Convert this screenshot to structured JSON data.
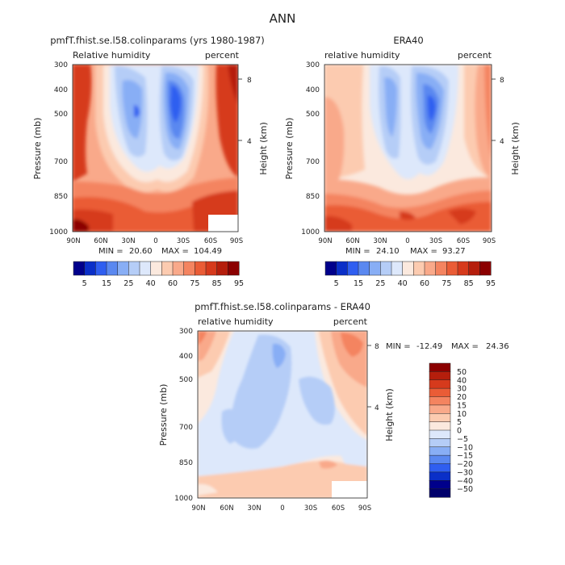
{
  "page_title": "ANN",
  "chart_data": [
    {
      "id": "model",
      "type": "contour",
      "title": "pmfT.fhist.se.l58.colinparams (yrs 1980-1987)",
      "left_label": "Relative humidity",
      "right_label": "percent",
      "ylabel": "Pressure (mb)",
      "y2label": "Height (km)",
      "x_ticks": [
        "90N",
        "60N",
        "30N",
        "0",
        "30S",
        "60S",
        "90S"
      ],
      "y_ticks": [
        300,
        400,
        500,
        700,
        850,
        1000
      ],
      "y2_ticks": [
        "8",
        "4"
      ],
      "min_label": "MIN = ",
      "min": "20.60",
      "max_label": "MAX = ",
      "max": "104.49",
      "colorbar_labels": [
        "5",
        "15",
        "25",
        "40",
        "60",
        "75",
        "85",
        "95"
      ],
      "colorbar_colors": [
        "#00008b",
        "#0a2fc8",
        "#2f5ef0",
        "#5a88f0",
        "#88aef5",
        "#b5cdf7",
        "#dde8fb",
        "#fbe9de",
        "#fccbb0",
        "#f9a98a",
        "#f48460",
        "#ea5c36",
        "#d63a1c",
        "#b51e0c",
        "#8b0000"
      ]
    },
    {
      "id": "obs",
      "type": "contour",
      "title": "ERA40",
      "left_label": "relative humidity",
      "right_label": "percent",
      "ylabel": "Pressure (mb)",
      "y2label": "Height (km)",
      "x_ticks": [
        "90N",
        "60N",
        "30N",
        "0",
        "30S",
        "60S",
        "90S"
      ],
      "y_ticks": [
        300,
        400,
        500,
        700,
        850,
        1000
      ],
      "y2_ticks": [
        "8",
        "4"
      ],
      "min_label": "MIN = ",
      "min": "24.10",
      "max_label": "MAX = ",
      "max": "93.27",
      "colorbar_labels": [
        "5",
        "15",
        "25",
        "40",
        "60",
        "75",
        "85",
        "95"
      ],
      "colorbar_colors": [
        "#00008b",
        "#0a2fc8",
        "#2f5ef0",
        "#5a88f0",
        "#88aef5",
        "#b5cdf7",
        "#dde8fb",
        "#fbe9de",
        "#fccbb0",
        "#f9a98a",
        "#f48460",
        "#ea5c36",
        "#d63a1c",
        "#b51e0c",
        "#8b0000"
      ]
    },
    {
      "id": "diff",
      "type": "contour",
      "title": "pmfT.fhist.se.l58.colinparams - ERA40",
      "left_label": "relative humidity",
      "right_label": "percent",
      "ylabel": "Pressure (mb)",
      "y2label": "Height (km)",
      "x_ticks": [
        "90N",
        "60N",
        "30N",
        "0",
        "30S",
        "60S",
        "90S"
      ],
      "y_ticks": [
        300,
        400,
        500,
        700,
        850,
        1000
      ],
      "y2_ticks": [
        "8",
        "4"
      ],
      "min_label": "MIN = ",
      "min": "-12.49",
      "max_label": "MAX = ",
      "max": "24.36",
      "colorbar_labels": [
        "50",
        "40",
        "30",
        "20",
        "15",
        "10",
        "5",
        "0",
        "−5",
        "−10",
        "−15",
        "−20",
        "−30",
        "−40",
        "−50"
      ],
      "colorbar_colors": [
        "#8b0000",
        "#b51e0c",
        "#d63a1c",
        "#ea5c36",
        "#f48460",
        "#f9a98a",
        "#fccbb0",
        "#fbe9de",
        "#dde8fb",
        "#b5cdf7",
        "#88aef5",
        "#5a88f0",
        "#2f5ef0",
        "#0a2fc8",
        "#00008b",
        "#00006b"
      ]
    }
  ]
}
